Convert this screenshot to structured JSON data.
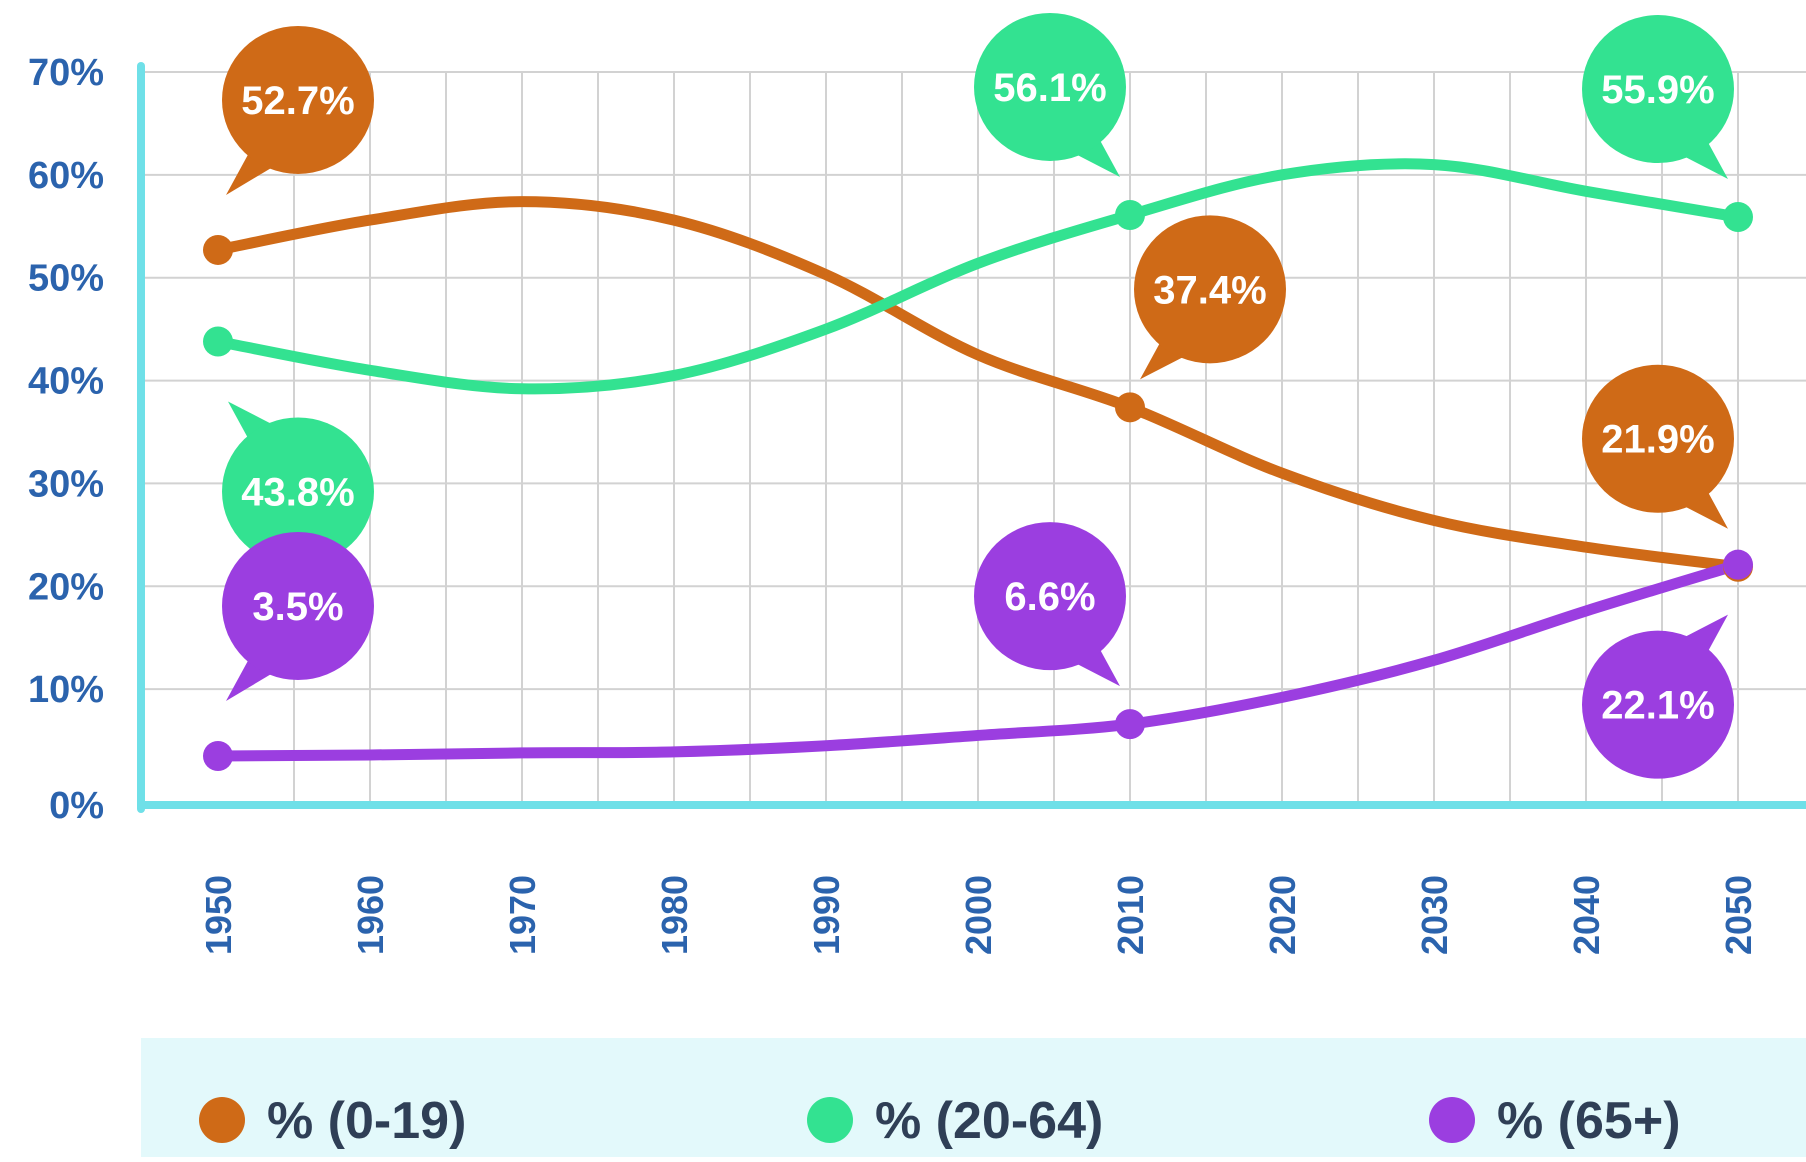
{
  "colors": {
    "background": "#ffffff",
    "axis": "#6fe0e8",
    "grid": "#d2d2d2",
    "tick_text": "#2b63ad",
    "legend_bg": "#e3f9fb",
    "legend_text": "#2f3f56"
  },
  "chart_data": {
    "type": "line",
    "x": [
      1950,
      1960,
      1970,
      1980,
      1990,
      2000,
      2010,
      2020,
      2030,
      2040,
      2050
    ],
    "x_tick_labels": [
      "1950",
      "1960",
      "1970",
      "1980",
      "1990",
      "2000",
      "2010",
      "2020",
      "2030",
      "2040",
      "2050"
    ],
    "y_tick_labels": [
      "0%",
      "10%",
      "20%",
      "30%",
      "40%",
      "50%",
      "60%",
      "70%"
    ],
    "ylim": [
      0,
      70
    ],
    "grid": true,
    "legend_position": "bottom",
    "series": [
      {
        "name": "% (0-19)",
        "color": "#cf6a17",
        "values": [
          52.7,
          55.6,
          57.4,
          55.6,
          50.3,
          42.5,
          37.4,
          31.0,
          26.4,
          23.8,
          21.9
        ],
        "labels": [
          {
            "x": 1950,
            "text": "52.7%",
            "placement": "above"
          },
          {
            "x": 2010,
            "text": "37.4%",
            "placement": "above-right"
          },
          {
            "x": 2050,
            "text": "21.9%",
            "placement": "above-left"
          }
        ]
      },
      {
        "name": "% (20-64)",
        "color": "#33e291",
        "values": [
          43.8,
          41.0,
          39.2,
          40.5,
          45.0,
          51.4,
          56.1,
          60.0,
          61.0,
          58.4,
          55.9
        ],
        "labels": [
          {
            "x": 1950,
            "text": "43.8%",
            "placement": "below"
          },
          {
            "x": 2010,
            "text": "56.1%",
            "placement": "above-left"
          },
          {
            "x": 2050,
            "text": "55.9%",
            "placement": "above-left"
          }
        ]
      },
      {
        "name": "% (65+)",
        "color": "#9b3ee0",
        "values": [
          3.5,
          3.6,
          3.8,
          3.9,
          4.5,
          5.5,
          6.6,
          9.2,
          12.8,
          17.6,
          22.1
        ],
        "labels": [
          {
            "x": 1950,
            "text": "3.5%",
            "placement": "above"
          },
          {
            "x": 2010,
            "text": "6.6%",
            "placement": "above-left"
          },
          {
            "x": 2050,
            "text": "22.1%",
            "placement": "below-left"
          }
        ]
      }
    ]
  }
}
